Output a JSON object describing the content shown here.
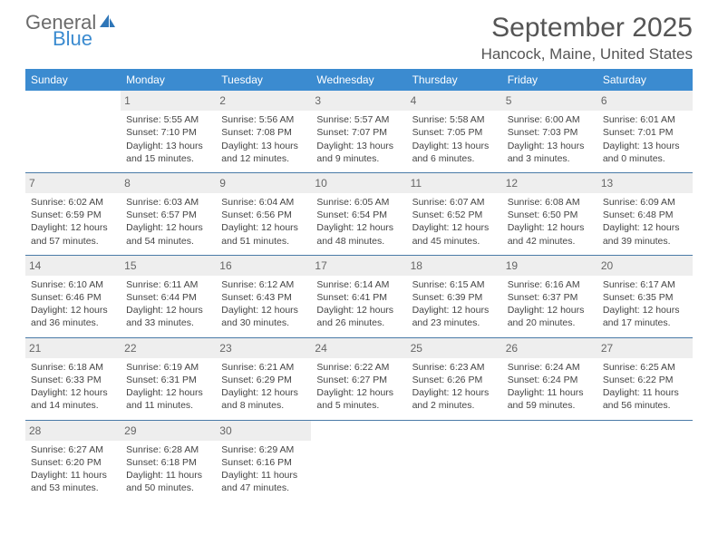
{
  "brand": {
    "part1": "General",
    "part2": "Blue"
  },
  "header": {
    "month_title": "September 2025",
    "location": "Hancock, Maine, United States"
  },
  "colors": {
    "header_bar": "#3b8bd0",
    "row_divider": "#4a7ba8",
    "daynum_bg": "#eeeeee",
    "text": "#444444"
  },
  "weekdays": [
    "Sunday",
    "Monday",
    "Tuesday",
    "Wednesday",
    "Thursday",
    "Friday",
    "Saturday"
  ],
  "weeks": [
    [
      null,
      {
        "n": "1",
        "sunrise": "5:55 AM",
        "sunset": "7:10 PM",
        "daylight": "13 hours and 15 minutes."
      },
      {
        "n": "2",
        "sunrise": "5:56 AM",
        "sunset": "7:08 PM",
        "daylight": "13 hours and 12 minutes."
      },
      {
        "n": "3",
        "sunrise": "5:57 AM",
        "sunset": "7:07 PM",
        "daylight": "13 hours and 9 minutes."
      },
      {
        "n": "4",
        "sunrise": "5:58 AM",
        "sunset": "7:05 PM",
        "daylight": "13 hours and 6 minutes."
      },
      {
        "n": "5",
        "sunrise": "6:00 AM",
        "sunset": "7:03 PM",
        "daylight": "13 hours and 3 minutes."
      },
      {
        "n": "6",
        "sunrise": "6:01 AM",
        "sunset": "7:01 PM",
        "daylight": "13 hours and 0 minutes."
      }
    ],
    [
      {
        "n": "7",
        "sunrise": "6:02 AM",
        "sunset": "6:59 PM",
        "daylight": "12 hours and 57 minutes."
      },
      {
        "n": "8",
        "sunrise": "6:03 AM",
        "sunset": "6:57 PM",
        "daylight": "12 hours and 54 minutes."
      },
      {
        "n": "9",
        "sunrise": "6:04 AM",
        "sunset": "6:56 PM",
        "daylight": "12 hours and 51 minutes."
      },
      {
        "n": "10",
        "sunrise": "6:05 AM",
        "sunset": "6:54 PM",
        "daylight": "12 hours and 48 minutes."
      },
      {
        "n": "11",
        "sunrise": "6:07 AM",
        "sunset": "6:52 PM",
        "daylight": "12 hours and 45 minutes."
      },
      {
        "n": "12",
        "sunrise": "6:08 AM",
        "sunset": "6:50 PM",
        "daylight": "12 hours and 42 minutes."
      },
      {
        "n": "13",
        "sunrise": "6:09 AM",
        "sunset": "6:48 PM",
        "daylight": "12 hours and 39 minutes."
      }
    ],
    [
      {
        "n": "14",
        "sunrise": "6:10 AM",
        "sunset": "6:46 PM",
        "daylight": "12 hours and 36 minutes."
      },
      {
        "n": "15",
        "sunrise": "6:11 AM",
        "sunset": "6:44 PM",
        "daylight": "12 hours and 33 minutes."
      },
      {
        "n": "16",
        "sunrise": "6:12 AM",
        "sunset": "6:43 PM",
        "daylight": "12 hours and 30 minutes."
      },
      {
        "n": "17",
        "sunrise": "6:14 AM",
        "sunset": "6:41 PM",
        "daylight": "12 hours and 26 minutes."
      },
      {
        "n": "18",
        "sunrise": "6:15 AM",
        "sunset": "6:39 PM",
        "daylight": "12 hours and 23 minutes."
      },
      {
        "n": "19",
        "sunrise": "6:16 AM",
        "sunset": "6:37 PM",
        "daylight": "12 hours and 20 minutes."
      },
      {
        "n": "20",
        "sunrise": "6:17 AM",
        "sunset": "6:35 PM",
        "daylight": "12 hours and 17 minutes."
      }
    ],
    [
      {
        "n": "21",
        "sunrise": "6:18 AM",
        "sunset": "6:33 PM",
        "daylight": "12 hours and 14 minutes."
      },
      {
        "n": "22",
        "sunrise": "6:19 AM",
        "sunset": "6:31 PM",
        "daylight": "12 hours and 11 minutes."
      },
      {
        "n": "23",
        "sunrise": "6:21 AM",
        "sunset": "6:29 PM",
        "daylight": "12 hours and 8 minutes."
      },
      {
        "n": "24",
        "sunrise": "6:22 AM",
        "sunset": "6:27 PM",
        "daylight": "12 hours and 5 minutes."
      },
      {
        "n": "25",
        "sunrise": "6:23 AM",
        "sunset": "6:26 PM",
        "daylight": "12 hours and 2 minutes."
      },
      {
        "n": "26",
        "sunrise": "6:24 AM",
        "sunset": "6:24 PM",
        "daylight": "11 hours and 59 minutes."
      },
      {
        "n": "27",
        "sunrise": "6:25 AM",
        "sunset": "6:22 PM",
        "daylight": "11 hours and 56 minutes."
      }
    ],
    [
      {
        "n": "28",
        "sunrise": "6:27 AM",
        "sunset": "6:20 PM",
        "daylight": "11 hours and 53 minutes."
      },
      {
        "n": "29",
        "sunrise": "6:28 AM",
        "sunset": "6:18 PM",
        "daylight": "11 hours and 50 minutes."
      },
      {
        "n": "30",
        "sunrise": "6:29 AM",
        "sunset": "6:16 PM",
        "daylight": "11 hours and 47 minutes."
      },
      null,
      null,
      null,
      null
    ]
  ],
  "labels": {
    "sunrise": "Sunrise: ",
    "sunset": "Sunset: ",
    "daylight": "Daylight: "
  }
}
